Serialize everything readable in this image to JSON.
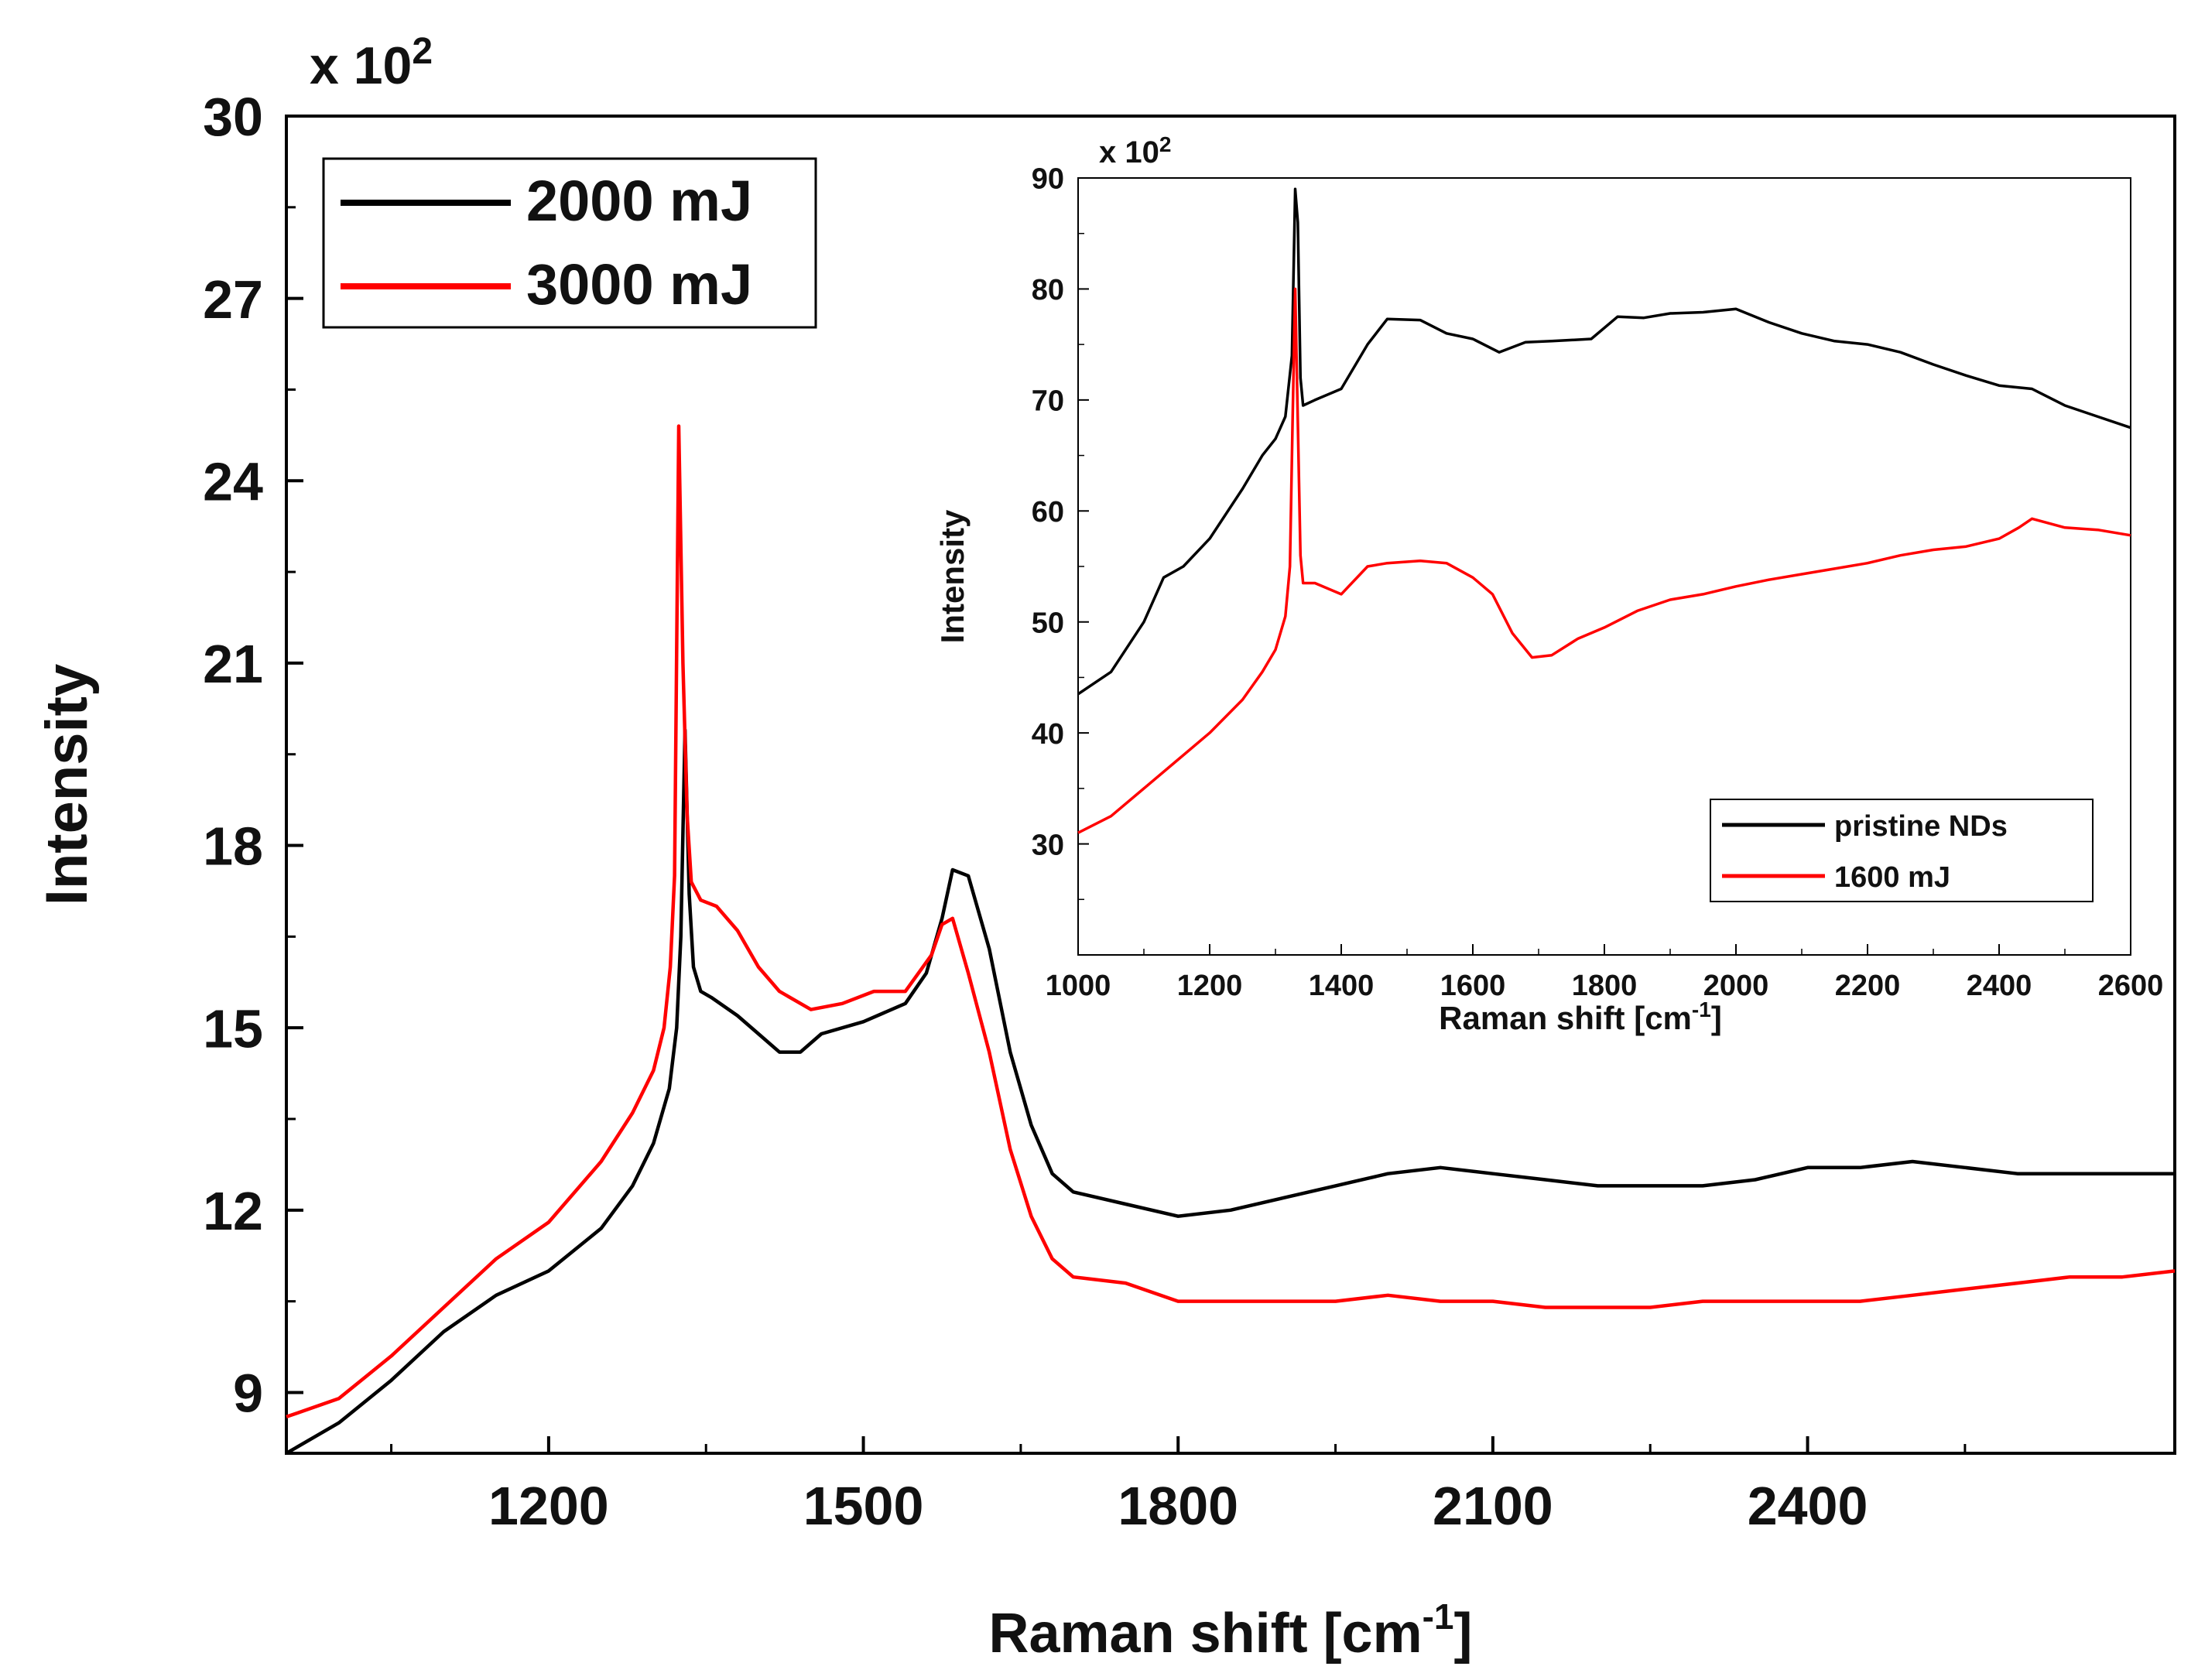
{
  "chart_data": [
    {
      "id": "main",
      "type": "line",
      "title": "",
      "xlabel": "Raman shift [cm",
      "xlabel_sup": "-1",
      "xlabel_end": "]",
      "ylabel": "Intensity",
      "multiplier": "x 10",
      "multiplier_exp": "2",
      "xlim": [
        950,
        2750
      ],
      "ylim": [
        8,
        30
      ],
      "xticks": [
        1200,
        1500,
        1800,
        2100,
        2400
      ],
      "yticks": [
        9,
        12,
        15,
        18,
        21,
        24,
        27,
        30
      ],
      "legend_position": "top-left",
      "series": [
        {
          "name": "2000 mJ",
          "color": "#000000",
          "x": [
            950,
            1000,
            1050,
            1100,
            1150,
            1200,
            1250,
            1280,
            1300,
            1315,
            1322,
            1326,
            1330,
            1334,
            1338,
            1345,
            1355,
            1380,
            1400,
            1420,
            1440,
            1460,
            1500,
            1540,
            1560,
            1575,
            1585,
            1600,
            1620,
            1640,
            1660,
            1680,
            1700,
            1750,
            1800,
            1850,
            1900,
            1950,
            2000,
            2050,
            2100,
            2150,
            2200,
            2250,
            2300,
            2350,
            2400,
            2450,
            2500,
            2550,
            2600,
            2650,
            2700,
            2750
          ],
          "y": [
            8,
            8.5,
            9.2,
            10.0,
            10.6,
            11.0,
            11.7,
            12.4,
            13.1,
            14.0,
            15.0,
            16.5,
            19.9,
            17.2,
            16.0,
            15.6,
            15.5,
            15.2,
            14.9,
            14.6,
            14.6,
            14.9,
            15.1,
            15.4,
            15.9,
            16.8,
            17.6,
            17.5,
            16.3,
            14.6,
            13.4,
            12.6,
            12.3,
            12.1,
            11.9,
            12.0,
            12.2,
            12.4,
            12.6,
            12.7,
            12.6,
            12.5,
            12.4,
            12.4,
            12.4,
            12.5,
            12.7,
            12.7,
            12.8,
            12.7,
            12.6,
            12.6,
            12.6,
            12.6
          ]
        },
        {
          "name": "3000 mJ",
          "color": "#ff0000",
          "x": [
            950,
            1000,
            1050,
            1100,
            1150,
            1200,
            1250,
            1280,
            1300,
            1310,
            1316,
            1320,
            1324,
            1328,
            1332,
            1336,
            1345,
            1360,
            1380,
            1400,
            1420,
            1450,
            1480,
            1510,
            1540,
            1565,
            1575,
            1585,
            1600,
            1620,
            1640,
            1660,
            1680,
            1700,
            1750,
            1800,
            1850,
            1900,
            1950,
            2000,
            2050,
            2100,
            2150,
            2200,
            2250,
            2300,
            2350,
            2400,
            2450,
            2500,
            2550,
            2600,
            2650,
            2700,
            2750
          ],
          "y": [
            8.6,
            8.9,
            9.6,
            10.4,
            11.2,
            11.8,
            12.8,
            13.6,
            14.3,
            15.0,
            16.0,
            17.5,
            24.9,
            21.0,
            18.5,
            17.4,
            17.1,
            17.0,
            16.6,
            16.0,
            15.6,
            15.3,
            15.4,
            15.6,
            15.6,
            16.2,
            16.7,
            16.8,
            15.9,
            14.6,
            13.0,
            11.9,
            11.2,
            10.9,
            10.8,
            10.5,
            10.5,
            10.5,
            10.5,
            10.6,
            10.5,
            10.5,
            10.4,
            10.4,
            10.4,
            10.5,
            10.5,
            10.5,
            10.5,
            10.6,
            10.7,
            10.8,
            10.9,
            10.9,
            11.0
          ]
        }
      ]
    },
    {
      "id": "inset",
      "type": "line",
      "title": "",
      "xlabel": "Raman shift [cm",
      "xlabel_sup": "-1",
      "xlabel_end": "]",
      "ylabel": "Intensity",
      "multiplier": "x 10",
      "multiplier_exp": "2",
      "xlim": [
        1000,
        2600
      ],
      "ylim": [
        20,
        90
      ],
      "xticks": [
        1000,
        1200,
        1400,
        1600,
        1800,
        2000,
        2200,
        2400,
        2600
      ],
      "yticks": [
        30,
        40,
        50,
        60,
        70,
        80,
        90
      ],
      "legend_position": "bottom-right",
      "series": [
        {
          "name": "pristine NDs",
          "color": "#000000",
          "x": [
            1000,
            1050,
            1100,
            1130,
            1160,
            1200,
            1250,
            1280,
            1300,
            1315,
            1325,
            1330,
            1334,
            1338,
            1342,
            1360,
            1400,
            1440,
            1470,
            1520,
            1560,
            1600,
            1640,
            1680,
            1720,
            1780,
            1820,
            1860,
            1900,
            1950,
            2000,
            2050,
            2100,
            2150,
            2200,
            2250,
            2300,
            2350,
            2400,
            2450,
            2500,
            2550,
            2600
          ],
          "y": [
            43.5,
            45.5,
            50.0,
            54.0,
            55.0,
            57.5,
            62.0,
            65.0,
            66.5,
            68.5,
            74.0,
            89.0,
            86.0,
            72.0,
            69.5,
            70.0,
            71.0,
            75.0,
            77.3,
            77.2,
            76.0,
            75.5,
            74.3,
            75.2,
            75.3,
            75.5,
            77.5,
            77.4,
            77.8,
            77.9,
            78.2,
            77.0,
            76.0,
            75.3,
            75.0,
            74.3,
            73.2,
            72.2,
            71.3,
            71.0,
            69.5,
            68.5,
            67.5
          ]
        },
        {
          "name": "1600 mJ",
          "color": "#ff0000",
          "x": [
            1000,
            1050,
            1100,
            1150,
            1200,
            1250,
            1280,
            1300,
            1315,
            1322,
            1326,
            1330,
            1334,
            1338,
            1342,
            1360,
            1400,
            1440,
            1470,
            1520,
            1560,
            1600,
            1630,
            1660,
            1690,
            1720,
            1760,
            1800,
            1850,
            1900,
            1950,
            2000,
            2050,
            2100,
            2150,
            2200,
            2250,
            2300,
            2350,
            2400,
            2430,
            2450,
            2500,
            2550,
            2600
          ],
          "y": [
            31.0,
            32.5,
            35.0,
            37.5,
            40.0,
            43.0,
            45.5,
            47.5,
            50.5,
            55.0,
            68.0,
            80.0,
            68.0,
            56.0,
            53.5,
            53.5,
            52.5,
            55.0,
            55.3,
            55.5,
            55.3,
            54.0,
            52.5,
            49.0,
            46.8,
            47.0,
            48.5,
            49.5,
            51.0,
            52.0,
            52.5,
            53.2,
            53.8,
            54.3,
            54.8,
            55.3,
            56.0,
            56.5,
            56.8,
            57.5,
            58.5,
            59.3,
            58.5,
            58.3,
            57.8
          ]
        }
      ]
    }
  ]
}
